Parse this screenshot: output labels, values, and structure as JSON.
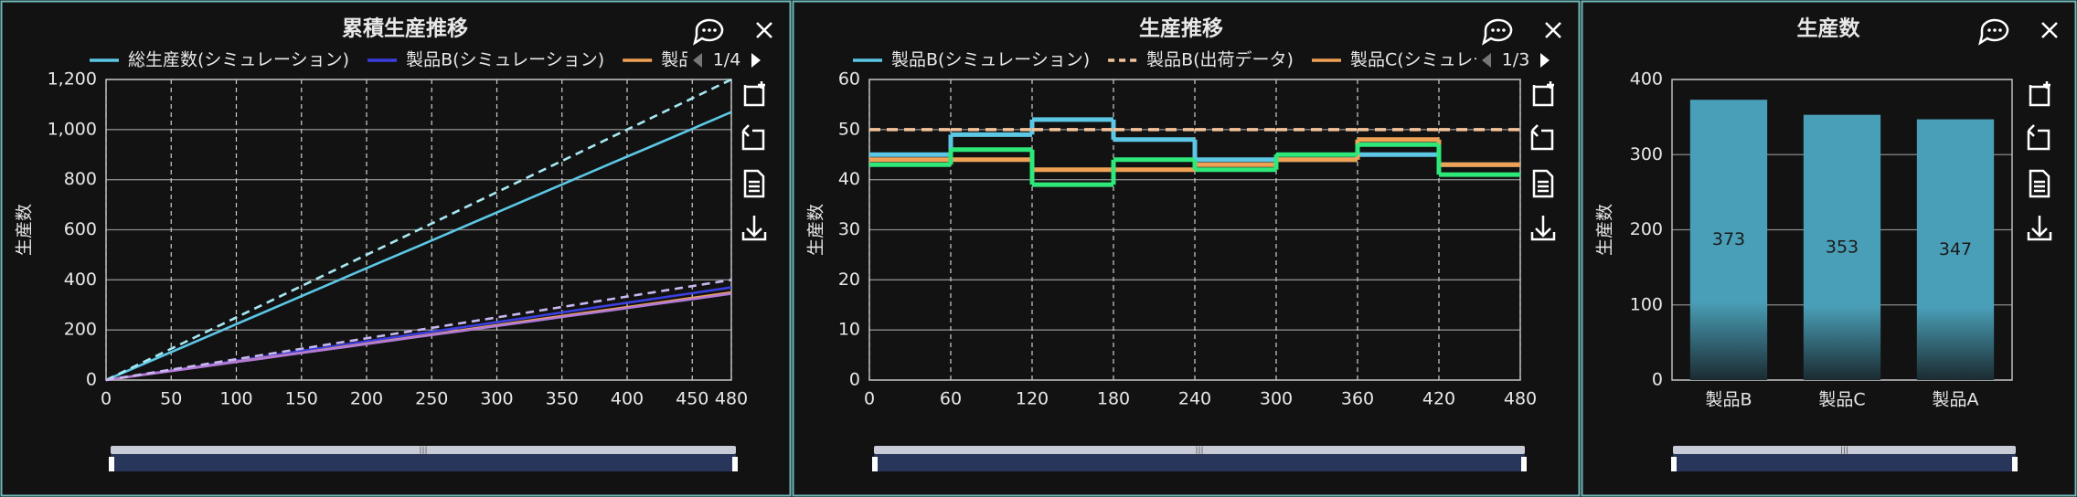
{
  "chart_data": [
    {
      "type": "line",
      "title": "累積生産推移",
      "y_label": "生産数",
      "legend_page": "1/4",
      "grid": true,
      "x": [
        0,
        30,
        60,
        90,
        120,
        150,
        180,
        210,
        240,
        270,
        300,
        330,
        360,
        390,
        420,
        450,
        480
      ],
      "xlim": [
        0,
        480
      ],
      "xticks": [
        0,
        50,
        100,
        150,
        200,
        250,
        300,
        350,
        400,
        450,
        480
      ],
      "ylim": [
        0,
        1200
      ],
      "yticks": [
        0,
        200,
        400,
        600,
        800,
        {
          "value": 1000,
          "label": "1,000"
        },
        {
          "value": 1200,
          "label": "1,200"
        }
      ],
      "series": [
        {
          "name": "総生産数(シミュレーション)",
          "color": "#5cc8e6",
          "dash": false,
          "values": [
            0,
            67,
            134,
            201,
            268,
            335,
            402,
            469,
            535,
            602,
            669,
            736,
            803,
            870,
            936,
            1003,
            1070
          ]
        },
        {
          "name": "製品B(シミュレーション)",
          "color": "#3b3fe0",
          "dash": false,
          "values": [
            0,
            23,
            46,
            69,
            93,
            116,
            139,
            162,
            185,
            208,
            231,
            254,
            278,
            301,
            324,
            347,
            370
          ]
        },
        {
          "name": "製品A",
          "color": "#f0a155",
          "dash": false,
          "values": [
            0,
            22,
            44,
            66,
            88,
            109,
            131,
            153,
            175,
            197,
            219,
            241,
            263,
            284,
            306,
            328,
            350
          ]
        },
        {
          "color": "#a8e8f2",
          "dash": true,
          "values": [
            0,
            75,
            150,
            225,
            300,
            375,
            450,
            525,
            600,
            675,
            750,
            825,
            900,
            975,
            1050,
            1125,
            1200
          ]
        },
        {
          "color": "#b27ad8",
          "dash": false,
          "values": [
            0,
            22,
            43,
            65,
            86,
            108,
            129,
            151,
            173,
            194,
            216,
            237,
            259,
            280,
            302,
            323,
            345
          ]
        },
        {
          "color": "#c9b8f0",
          "dash": true,
          "values": [
            0,
            25,
            50,
            75,
            100,
            125,
            150,
            175,
            200,
            225,
            250,
            275,
            300,
            325,
            350,
            375,
            400
          ]
        }
      ]
    },
    {
      "type": "step",
      "title": "生産推移",
      "y_label": "生産数",
      "legend_page": "1/3",
      "grid": true,
      "x": [
        0,
        60,
        120,
        180,
        240,
        300,
        360,
        420
      ],
      "xlim": [
        0,
        480
      ],
      "xticks": [
        0,
        60,
        120,
        180,
        240,
        300,
        360,
        420,
        480
      ],
      "ylim": [
        0,
        60
      ],
      "yticks": [
        0,
        10,
        20,
        30,
        40,
        50,
        60
      ],
      "series": [
        {
          "name": "製品B(シミュレーション)",
          "color": "#5cc8e6",
          "dash": false,
          "values": [
            45,
            49,
            52,
            48,
            44,
            44,
            45,
            43
          ]
        },
        {
          "name": "製品B(出荷データ)",
          "color": "#f5c49a",
          "dash": true,
          "values": [
            50,
            50,
            50,
            50,
            50,
            50,
            50,
            50
          ]
        },
        {
          "name": "製品C(シミュレーション)",
          "color": "#f0a155",
          "dash": false,
          "values": [
            44,
            44,
            42,
            42,
            43,
            44,
            48,
            43
          ]
        },
        {
          "color": "#2ee87a",
          "dash": false,
          "values": [
            43,
            46,
            39,
            44,
            42,
            45,
            47,
            41
          ]
        }
      ]
    },
    {
      "type": "bar",
      "title": "生産数",
      "y_label": "生産数",
      "grid": true,
      "color": "#4a9fb8",
      "categories": [
        "製品B",
        "製品C",
        "製品A"
      ],
      "values": [
        373,
        353,
        347
      ],
      "ylim": [
        0,
        400
      ],
      "yticks": [
        0,
        100,
        200,
        300,
        400
      ]
    }
  ]
}
